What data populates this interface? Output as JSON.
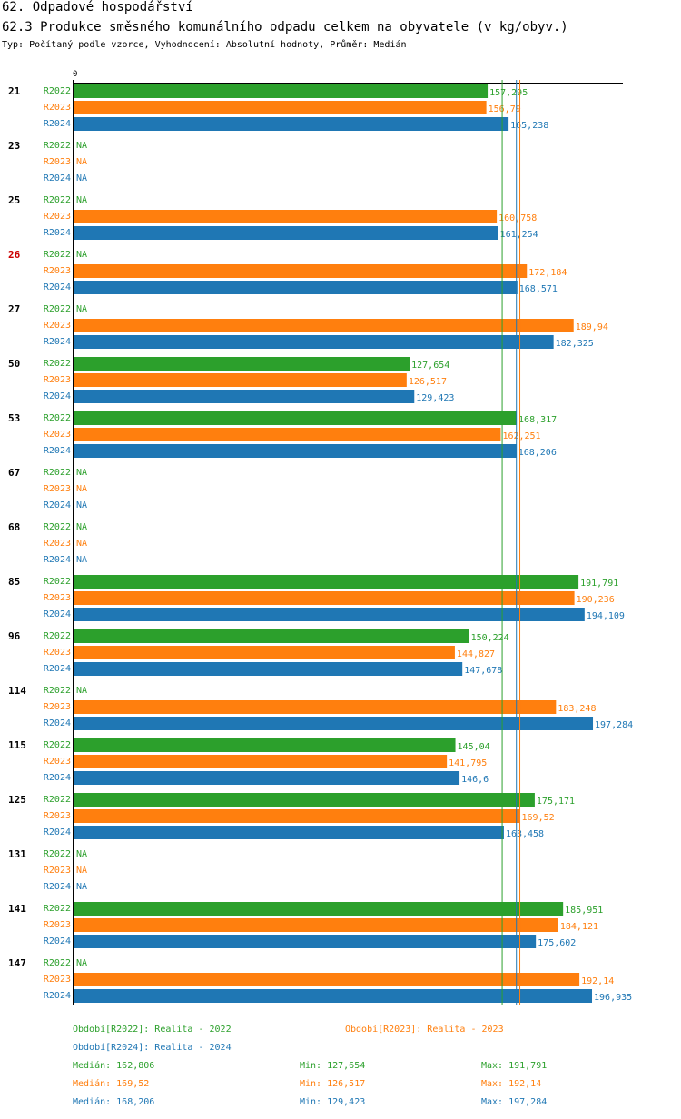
{
  "header": {
    "title": "62. Odpadové hospodářství",
    "subtitle": "62.3 Produkce směsného komunálního odpadu celkem na obyvatele (v kg/obyv.)",
    "meta": "Typ: Počítaný podle vzorce, Vyhodnocení: Absolutní hodnoty, Průměr: Medián"
  },
  "colors": {
    "r2022": "#2ca02c",
    "r2023": "#ff7f0e",
    "r2024": "#1f77b4",
    "highlight": "#cc0000"
  },
  "chart_data": {
    "type": "bar",
    "orientation": "horizontal",
    "axis_zero_label": "0",
    "xlim": [
      0,
      209
    ],
    "na_label": "NA",
    "series_names": [
      "R2022",
      "R2023",
      "R2024"
    ],
    "groups": [
      {
        "id": "21",
        "highlight": false,
        "values": [
          157.295,
          156.79,
          165.238
        ],
        "labels": [
          "157,295",
          "156,79",
          "165,238"
        ]
      },
      {
        "id": "23",
        "highlight": false,
        "values": [
          null,
          null,
          null
        ],
        "labels": [
          "NA",
          "NA",
          "NA"
        ]
      },
      {
        "id": "25",
        "highlight": false,
        "values": [
          null,
          160.758,
          161.254
        ],
        "labels": [
          "NA",
          "160,758",
          "161,254"
        ]
      },
      {
        "id": "26",
        "highlight": true,
        "values": [
          null,
          172.184,
          168.571
        ],
        "labels": [
          "NA",
          "172,184",
          "168,571"
        ]
      },
      {
        "id": "27",
        "highlight": false,
        "values": [
          null,
          189.94,
          182.325
        ],
        "labels": [
          "NA",
          "189,94",
          "182,325"
        ]
      },
      {
        "id": "50",
        "highlight": false,
        "values": [
          127.654,
          126.517,
          129.423
        ],
        "labels": [
          "127,654",
          "126,517",
          "129,423"
        ]
      },
      {
        "id": "53",
        "highlight": false,
        "values": [
          168.317,
          162.251,
          168.206
        ],
        "labels": [
          "168,317",
          "162,251",
          "168,206"
        ]
      },
      {
        "id": "67",
        "highlight": false,
        "values": [
          null,
          null,
          null
        ],
        "labels": [
          "NA",
          "NA",
          "NA"
        ]
      },
      {
        "id": "68",
        "highlight": false,
        "values": [
          null,
          null,
          null
        ],
        "labels": [
          "NA",
          "NA",
          "NA"
        ]
      },
      {
        "id": "85",
        "highlight": false,
        "values": [
          191.791,
          190.236,
          194.109
        ],
        "labels": [
          "191,791",
          "190,236",
          "194,109"
        ]
      },
      {
        "id": "96",
        "highlight": false,
        "values": [
          150.224,
          144.827,
          147.678
        ],
        "labels": [
          "150,224",
          "144,827",
          "147,678"
        ]
      },
      {
        "id": "114",
        "highlight": false,
        "values": [
          null,
          183.248,
          197.284
        ],
        "labels": [
          "NA",
          "183,248",
          "197,284"
        ]
      },
      {
        "id": "115",
        "highlight": false,
        "values": [
          145.04,
          141.795,
          146.6
        ],
        "labels": [
          "145,04",
          "141,795",
          "146,6"
        ]
      },
      {
        "id": "125",
        "highlight": false,
        "values": [
          175.171,
          169.52,
          163.458
        ],
        "labels": [
          "175,171",
          "169,52",
          "163,458"
        ]
      },
      {
        "id": "131",
        "highlight": false,
        "values": [
          null,
          null,
          null
        ],
        "labels": [
          "NA",
          "NA",
          "NA"
        ]
      },
      {
        "id": "141",
        "highlight": false,
        "values": [
          185.951,
          184.121,
          175.602
        ],
        "labels": [
          "185,951",
          "184,121",
          "175,602"
        ]
      },
      {
        "id": "147",
        "highlight": false,
        "values": [
          null,
          192.14,
          196.935
        ],
        "labels": [
          "NA",
          "192,14",
          "196,935"
        ]
      }
    ],
    "medians": [
      162.806,
      169.52,
      168.206
    ]
  },
  "legend": {
    "period_2022": "Období[R2022]: Realita - 2022",
    "period_2023": "Období[R2023]: Realita - 2023",
    "period_2024": "Období[R2024]: Realita - 2024",
    "stats": [
      {
        "median": "Medián: 162,806",
        "min": "Min: 127,654",
        "max": "Max: 191,791"
      },
      {
        "median": "Medián: 169,52",
        "min": "Min: 126,517",
        "max": "Max: 192,14"
      },
      {
        "median": "Medián: 168,206",
        "min": "Min: 129,423",
        "max": "Max: 197,284"
      }
    ]
  }
}
